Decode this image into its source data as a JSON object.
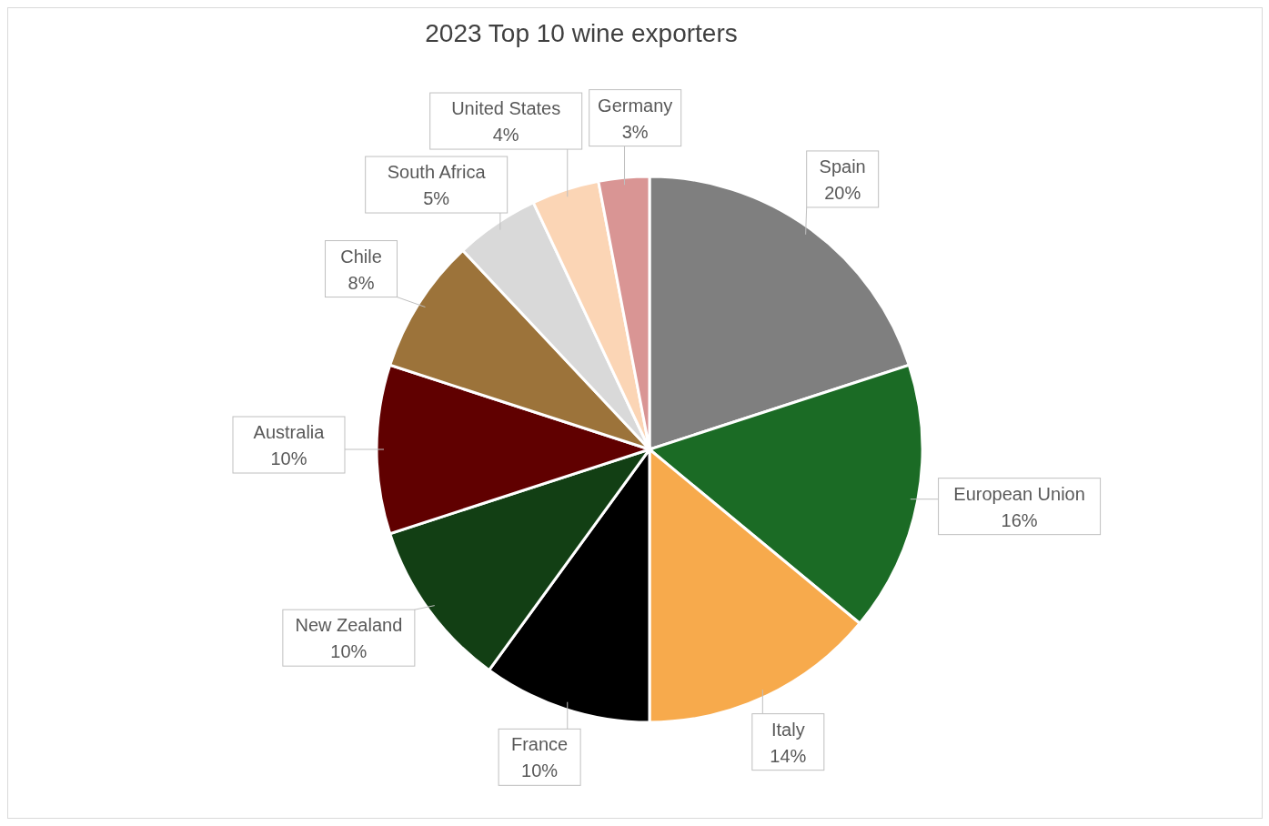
{
  "chart_data": {
    "type": "pie",
    "title": "2023 Top 10 wine exporters",
    "categories": [
      "Spain",
      "European Union",
      "Italy",
      "France",
      "New Zealand",
      "Australia",
      "Chile",
      "South Africa",
      "United States",
      "Germany"
    ],
    "values": [
      20,
      16,
      14,
      10,
      10,
      10,
      8,
      5,
      4,
      3
    ],
    "value_labels": [
      "20%",
      "16%",
      "14%",
      "10%",
      "10%",
      "10%",
      "8%",
      "5%",
      "4%",
      "3%"
    ],
    "colors": [
      "#7f7f7f",
      "#1b6b25",
      "#f7aa4c",
      "#000000",
      "#123f14",
      "#600000",
      "#9c733a",
      "#d9d9d9",
      "#fbd5b5",
      "#d99594"
    ],
    "legend": false
  }
}
